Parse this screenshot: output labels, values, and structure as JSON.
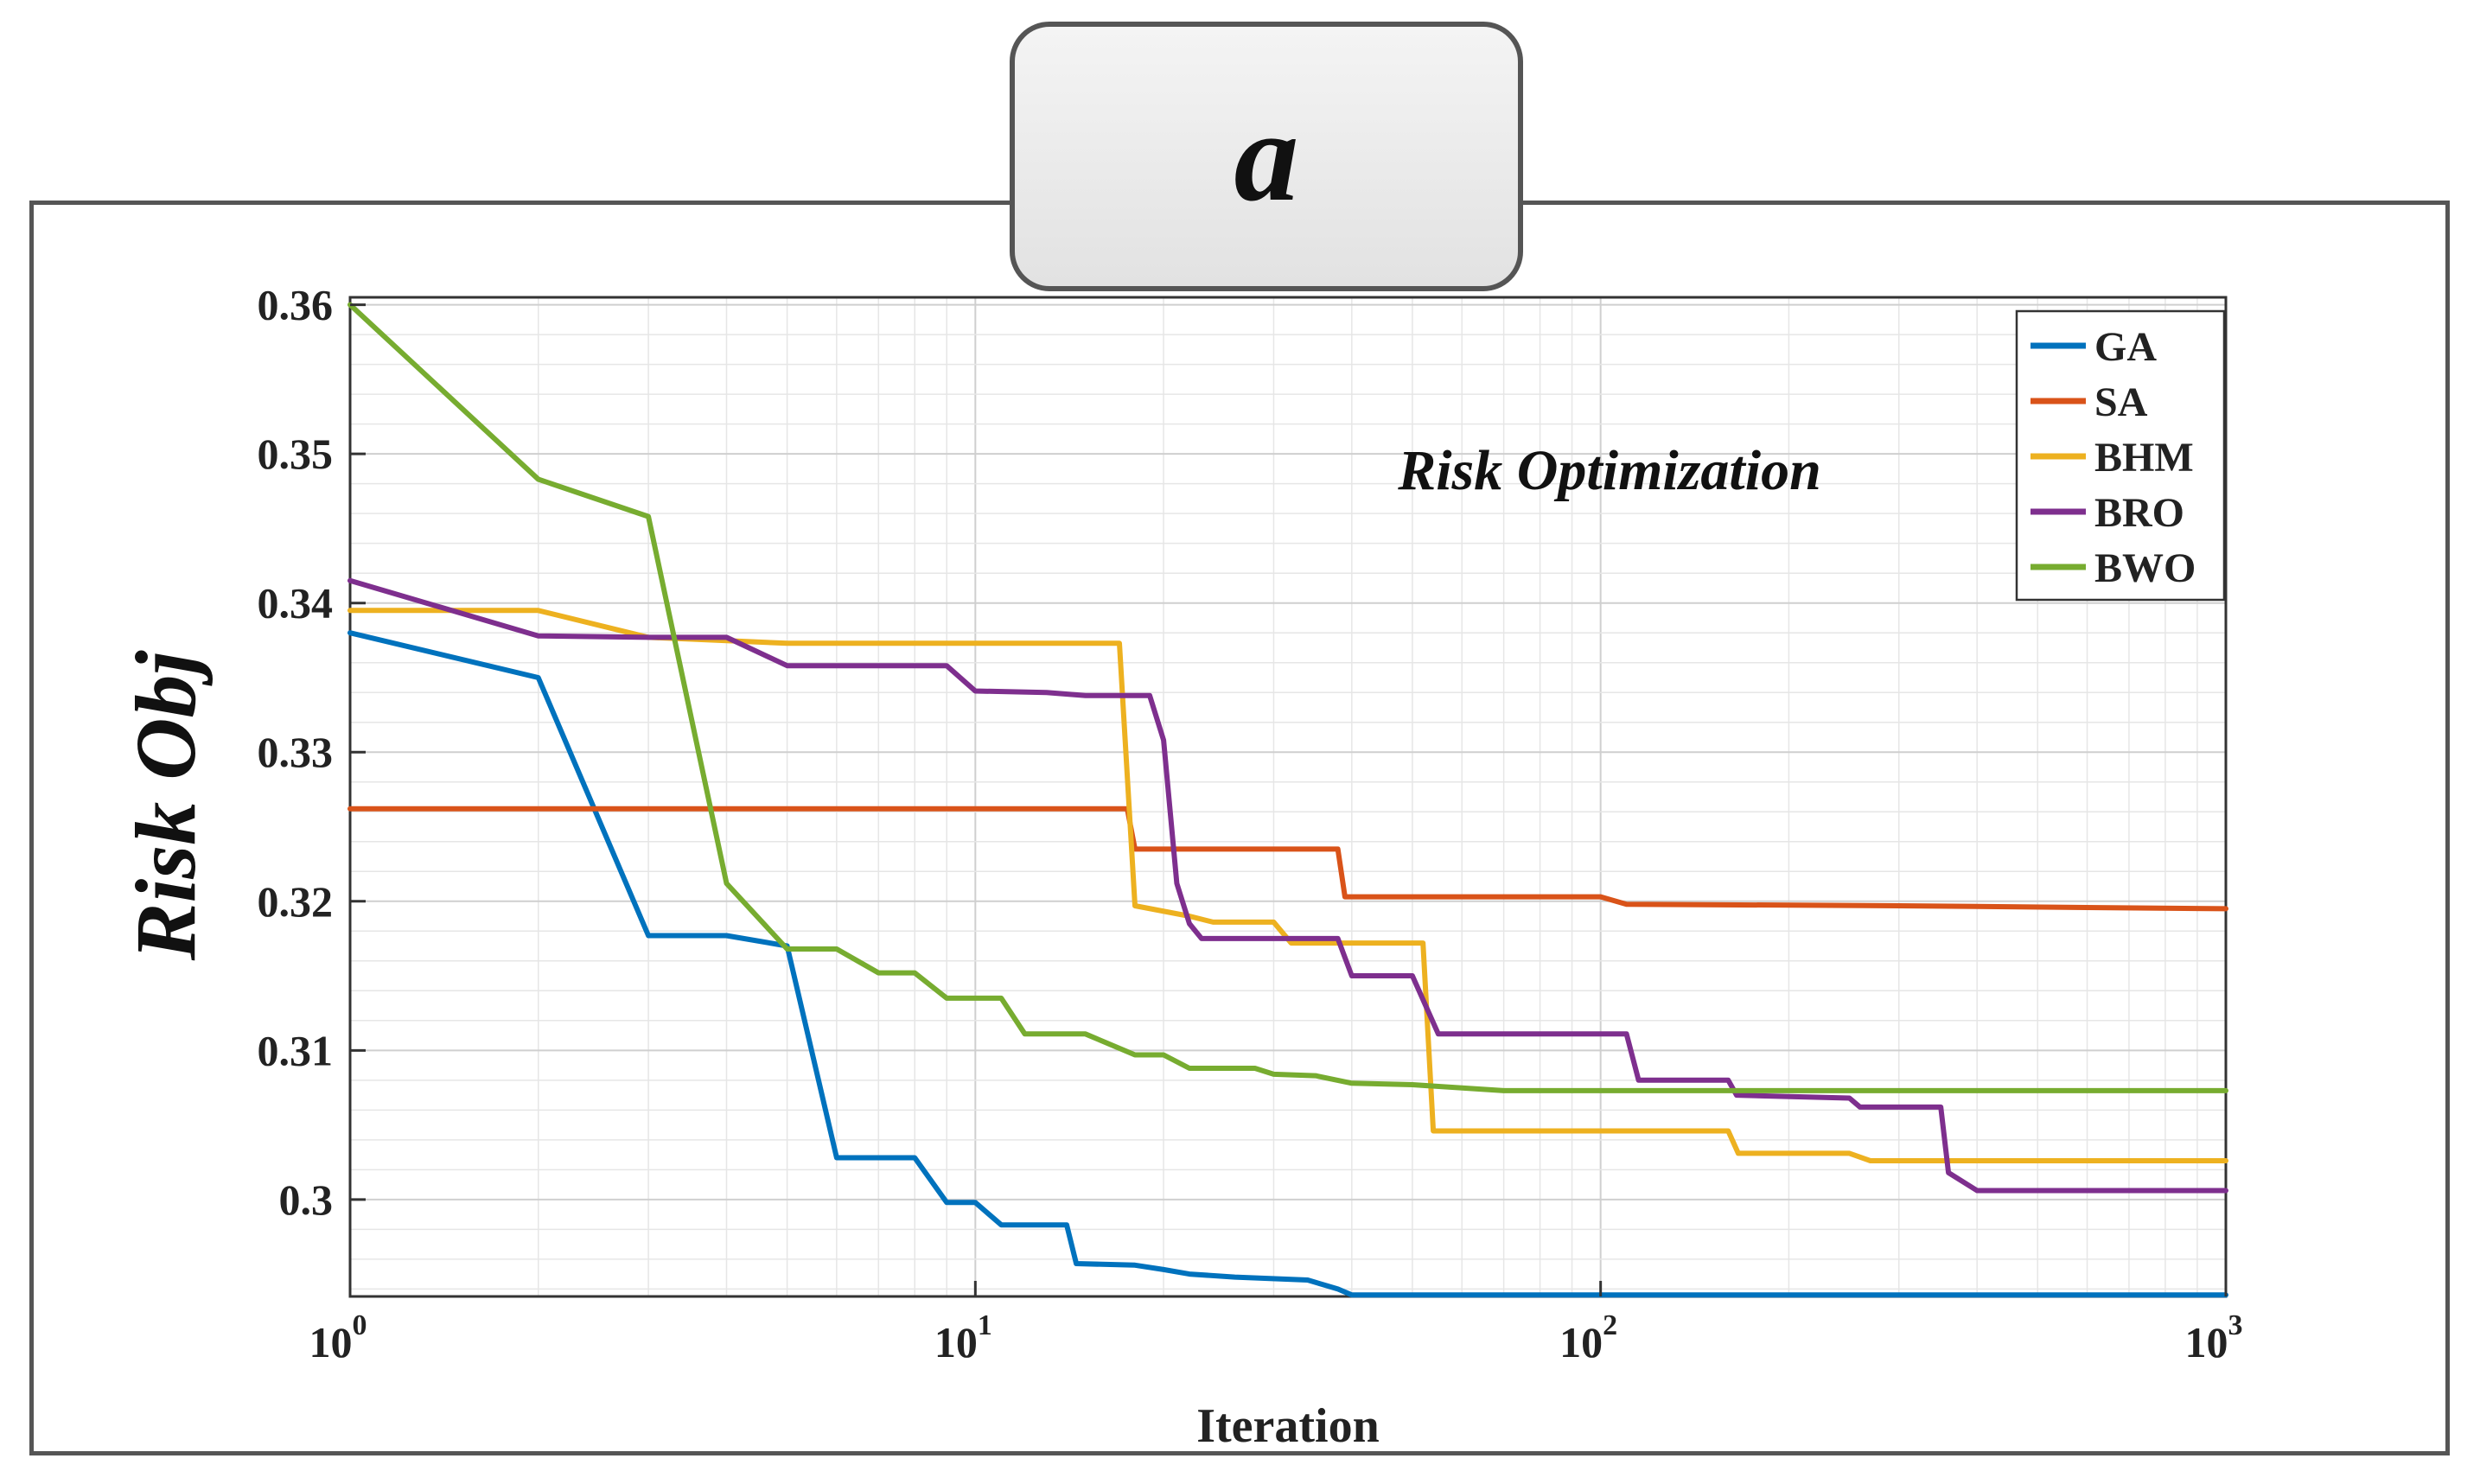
{
  "panel_label": "a",
  "chart_data": {
    "type": "line",
    "title": "Risk Optimization",
    "xlabel": "Iteration",
    "ylabel": "Risk Obj",
    "xscale": "log",
    "xlim": [
      1,
      1000
    ],
    "ylim": [
      0.2935,
      0.3605
    ],
    "yticks": [
      "0.3",
      "0.31",
      "0.32",
      "0.33",
      "0.34",
      "0.35",
      "0.36"
    ],
    "ytick_values": [
      0.3,
      0.31,
      0.32,
      0.33,
      0.34,
      0.35,
      0.36
    ],
    "xticks": [
      {
        "base": "10",
        "exp": "0",
        "value": 1
      },
      {
        "base": "10",
        "exp": "1",
        "value": 10
      },
      {
        "base": "10",
        "exp": "2",
        "value": 100
      },
      {
        "base": "10",
        "exp": "3",
        "value": 1000
      }
    ],
    "grid": true,
    "legend_position": "top-right",
    "series": [
      {
        "name": "GA",
        "color": "#0072BD",
        "points": [
          [
            1,
            0.338
          ],
          [
            2,
            0.335
          ],
          [
            3,
            0.3177
          ],
          [
            4,
            0.3177
          ],
          [
            5,
            0.317
          ],
          [
            6,
            0.3028
          ],
          [
            8,
            0.3028
          ],
          [
            9,
            0.2998
          ],
          [
            10,
            0.2998
          ],
          [
            11,
            0.2983
          ],
          [
            14,
            0.2983
          ],
          [
            14.5,
            0.2957
          ],
          [
            18,
            0.2956
          ],
          [
            20,
            0.2953
          ],
          [
            22,
            0.295
          ],
          [
            26,
            0.2948
          ],
          [
            34,
            0.2946
          ],
          [
            38,
            0.294
          ],
          [
            40,
            0.2936
          ],
          [
            1000,
            0.2936
          ]
        ]
      },
      {
        "name": "SA",
        "color": "#D95319",
        "points": [
          [
            1,
            0.3262
          ],
          [
            17.5,
            0.3262
          ],
          [
            18,
            0.3235
          ],
          [
            38,
            0.3235
          ],
          [
            39,
            0.3203
          ],
          [
            100,
            0.3203
          ],
          [
            110,
            0.3198
          ],
          [
            300,
            0.3197
          ],
          [
            1000,
            0.3195
          ]
        ]
      },
      {
        "name": "BHM",
        "color": "#EDB120",
        "points": [
          [
            1,
            0.3395
          ],
          [
            2,
            0.3395
          ],
          [
            3,
            0.3377
          ],
          [
            5,
            0.3373
          ],
          [
            17,
            0.3373
          ],
          [
            18,
            0.3197
          ],
          [
            22,
            0.319
          ],
          [
            24,
            0.3186
          ],
          [
            30,
            0.3186
          ],
          [
            32,
            0.3172
          ],
          [
            52,
            0.3172
          ],
          [
            54,
            0.3046
          ],
          [
            160,
            0.3046
          ],
          [
            166,
            0.3031
          ],
          [
            250,
            0.3031
          ],
          [
            270,
            0.3026
          ],
          [
            1000,
            0.3026
          ]
        ]
      },
      {
        "name": "BRO",
        "color": "#7E2F8E",
        "points": [
          [
            1,
            0.3415
          ],
          [
            2,
            0.3378
          ],
          [
            3,
            0.3377
          ],
          [
            4,
            0.3377
          ],
          [
            5,
            0.3358
          ],
          [
            9,
            0.3358
          ],
          [
            10,
            0.3341
          ],
          [
            13,
            0.334
          ],
          [
            15,
            0.3338
          ],
          [
            19,
            0.3338
          ],
          [
            20,
            0.3308
          ],
          [
            21,
            0.3212
          ],
          [
            22,
            0.3185
          ],
          [
            23,
            0.3175
          ],
          [
            38,
            0.3175
          ],
          [
            40,
            0.315
          ],
          [
            50,
            0.315
          ],
          [
            55,
            0.3111
          ],
          [
            70,
            0.3111
          ],
          [
            110,
            0.3111
          ],
          [
            115,
            0.308
          ],
          [
            160,
            0.308
          ],
          [
            165,
            0.307
          ],
          [
            250,
            0.3068
          ],
          [
            260,
            0.3062
          ],
          [
            350,
            0.3062
          ],
          [
            360,
            0.3018
          ],
          [
            400,
            0.3006
          ],
          [
            1000,
            0.3006
          ]
        ]
      },
      {
        "name": "BWO",
        "color": "#77AC30",
        "points": [
          [
            1,
            0.36
          ],
          [
            2,
            0.3483
          ],
          [
            3,
            0.3458
          ],
          [
            4,
            0.3212
          ],
          [
            5,
            0.3168
          ],
          [
            6,
            0.3168
          ],
          [
            7,
            0.3152
          ],
          [
            8,
            0.3152
          ],
          [
            9,
            0.3135
          ],
          [
            11,
            0.3135
          ],
          [
            12,
            0.3111
          ],
          [
            15,
            0.3111
          ],
          [
            18,
            0.3097
          ],
          [
            20,
            0.3097
          ],
          [
            22,
            0.3088
          ],
          [
            28,
            0.3088
          ],
          [
            30,
            0.3084
          ],
          [
            35,
            0.3083
          ],
          [
            40,
            0.3078
          ],
          [
            50,
            0.3077
          ],
          [
            70,
            0.3073
          ],
          [
            1000,
            0.3073
          ]
        ]
      }
    ]
  }
}
